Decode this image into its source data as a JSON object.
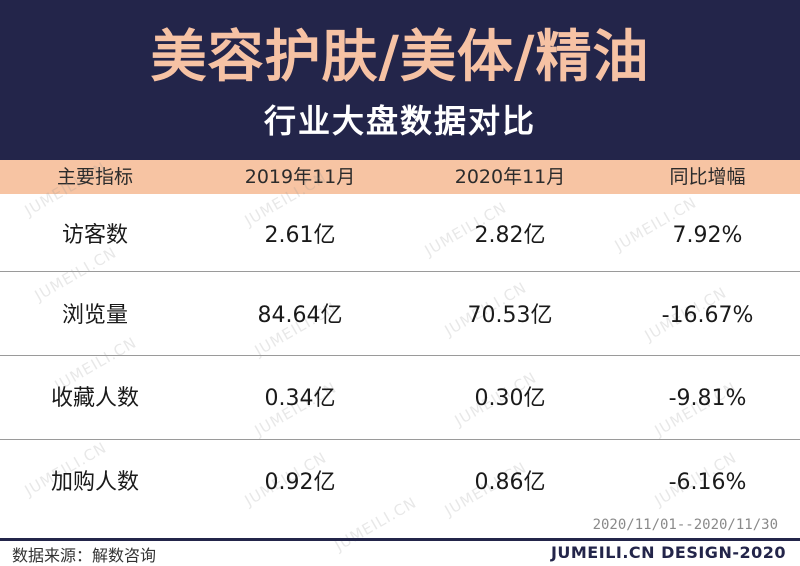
{
  "header": {
    "title": "美容护肤/美体/精油",
    "subtitle": "行业大盘数据对比"
  },
  "table": {
    "columns": [
      "主要指标",
      "2019年11月",
      "2020年11月",
      "同比增幅"
    ],
    "rows": [
      [
        "访客数",
        "2.61亿",
        "2.82亿",
        "7.92%"
      ],
      [
        "浏览量",
        "84.64亿",
        "70.53亿",
        "-16.67%"
      ],
      [
        "收藏人数",
        "0.34亿",
        "0.30亿",
        "-9.81%"
      ],
      [
        "加购人数",
        "0.92亿",
        "0.86亿",
        "-6.16%"
      ]
    ]
  },
  "date_range": "2020/11/01--2020/11/30",
  "footer": {
    "source": "数据来源：解数咨询",
    "credit": "JUMEILI.CN DESIGN-2020"
  },
  "watermark": "JUMEILI.CN",
  "colors": {
    "header_bg": "#23254a",
    "title": "#f6c2a4",
    "column_header_bg": "#f7c4a3"
  }
}
